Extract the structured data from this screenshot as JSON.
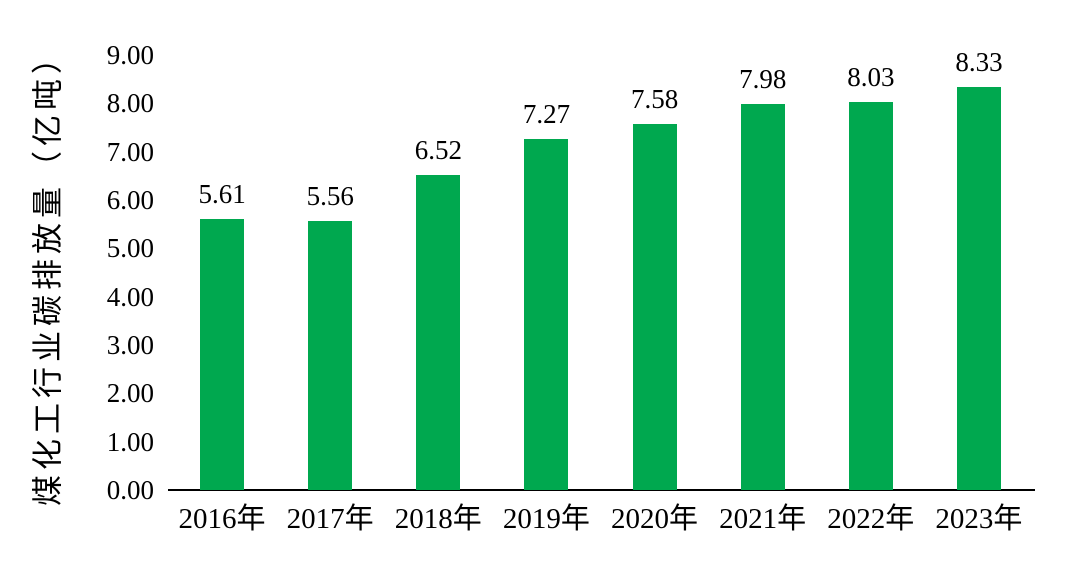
{
  "chart_data": {
    "type": "bar",
    "title": "",
    "xlabel": "",
    "ylabel": "煤化工行业碳排放量（亿吨）",
    "categories": [
      "2016年",
      "2017年",
      "2018年",
      "2019年",
      "2020年",
      "2021年",
      "2022年",
      "2023年"
    ],
    "values": [
      5.61,
      5.56,
      6.52,
      7.27,
      7.58,
      7.98,
      8.03,
      8.33
    ],
    "value_labels": [
      "5.61",
      "5.56",
      "6.52",
      "7.27",
      "7.58",
      "7.98",
      "8.03",
      "8.33"
    ],
    "ylim": [
      0,
      9
    ],
    "ytick_step": 1,
    "ytick_labels": [
      "0.00",
      "1.00",
      "2.00",
      "3.00",
      "4.00",
      "5.00",
      "6.00",
      "7.00",
      "8.00",
      "9.00"
    ],
    "grid": false,
    "legend": false,
    "bar_color": "#00A84F",
    "axis_color": "#000000",
    "text_color": "#000000",
    "background_color": "#FFFFFF"
  }
}
